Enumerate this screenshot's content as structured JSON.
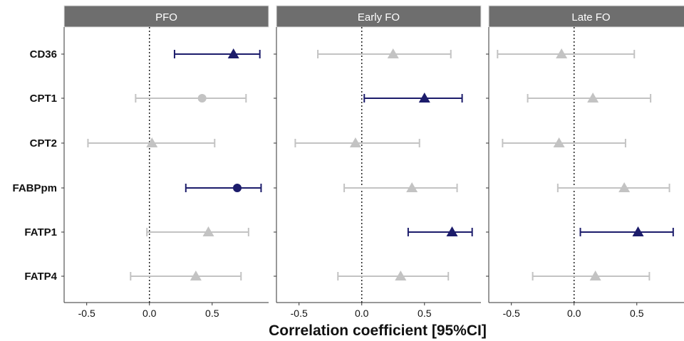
{
  "colors": {
    "significant": "#1c1c6b",
    "nonsignificant": "#c3c3c3",
    "strip": "#6e6e6e"
  },
  "chart_data": {
    "type": "forest",
    "xlabel": "Correlation coefficient [95%CI]",
    "xlim": [
      -0.68,
      0.95
    ],
    "xticks": [
      -0.5,
      0.0,
      0.5
    ],
    "tick_labels": [
      "-0.5",
      "0.0",
      "0.5"
    ],
    "reference_line": 0,
    "categories": [
      "CD36",
      "CPT1",
      "CPT2",
      "FABPpm",
      "FATP1",
      "FATP4"
    ],
    "panels": [
      {
        "title": "PFO",
        "points": [
          {
            "label": "CD36",
            "estimate": 0.67,
            "lower": 0.2,
            "upper": 0.88,
            "shape": "triangle",
            "significant": true
          },
          {
            "label": "CPT1",
            "estimate": 0.42,
            "lower": -0.11,
            "upper": 0.77,
            "shape": "circle",
            "significant": false
          },
          {
            "label": "CPT2",
            "estimate": 0.02,
            "lower": -0.49,
            "upper": 0.52,
            "shape": "triangle",
            "significant": false
          },
          {
            "label": "FABPpm",
            "estimate": 0.7,
            "lower": 0.29,
            "upper": 0.89,
            "shape": "circle",
            "significant": true
          },
          {
            "label": "FATP1",
            "estimate": 0.47,
            "lower": -0.02,
            "upper": 0.79,
            "shape": "triangle",
            "significant": false
          },
          {
            "label": "FATP4",
            "estimate": 0.37,
            "lower": -0.15,
            "upper": 0.73,
            "shape": "triangle",
            "significant": false
          }
        ]
      },
      {
        "title": "Early FO",
        "points": [
          {
            "label": "CD36",
            "estimate": 0.25,
            "lower": -0.35,
            "upper": 0.71,
            "shape": "triangle",
            "significant": false
          },
          {
            "label": "CPT1",
            "estimate": 0.5,
            "lower": 0.02,
            "upper": 0.8,
            "shape": "triangle",
            "significant": true
          },
          {
            "label": "CPT2",
            "estimate": -0.05,
            "lower": -0.53,
            "upper": 0.46,
            "shape": "triangle",
            "significant": false
          },
          {
            "label": "FABPpm",
            "estimate": 0.4,
            "lower": -0.14,
            "upper": 0.76,
            "shape": "triangle",
            "significant": false
          },
          {
            "label": "FATP1",
            "estimate": 0.72,
            "lower": 0.37,
            "upper": 0.88,
            "shape": "triangle",
            "significant": true
          },
          {
            "label": "FATP4",
            "estimate": 0.31,
            "lower": -0.19,
            "upper": 0.69,
            "shape": "triangle",
            "significant": false
          }
        ]
      },
      {
        "title": "Late FO",
        "points": [
          {
            "label": "CD36",
            "estimate": -0.1,
            "lower": -0.61,
            "upper": 0.48,
            "shape": "triangle",
            "significant": false
          },
          {
            "label": "CPT1",
            "estimate": 0.15,
            "lower": -0.37,
            "upper": 0.61,
            "shape": "triangle",
            "significant": false
          },
          {
            "label": "CPT2",
            "estimate": -0.12,
            "lower": -0.57,
            "upper": 0.41,
            "shape": "triangle",
            "significant": false
          },
          {
            "label": "FABPpm",
            "estimate": 0.4,
            "lower": -0.13,
            "upper": 0.76,
            "shape": "triangle",
            "significant": false
          },
          {
            "label": "FATP1",
            "estimate": 0.51,
            "lower": 0.05,
            "upper": 0.79,
            "shape": "triangle",
            "significant": true
          },
          {
            "label": "FATP4",
            "estimate": 0.17,
            "lower": -0.33,
            "upper": 0.6,
            "shape": "triangle",
            "significant": false
          }
        ]
      }
    ]
  }
}
